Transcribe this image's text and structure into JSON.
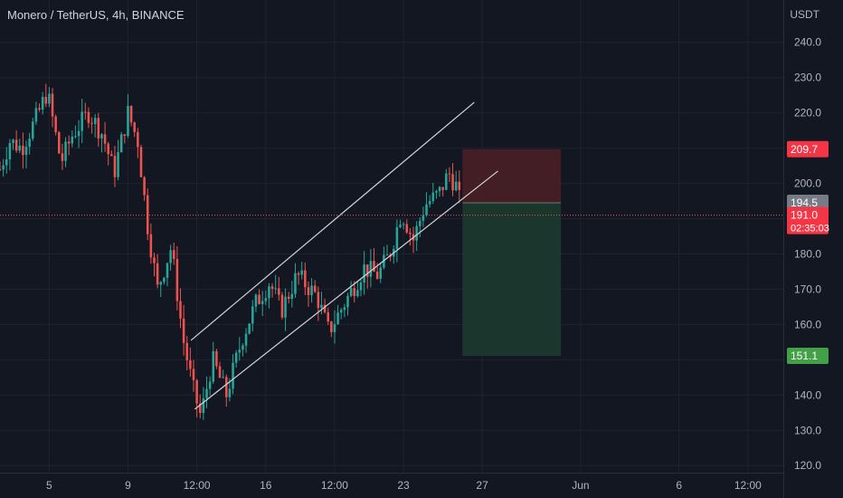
{
  "header": {
    "title": "Monero / TetherUS, 4h, BINANCE",
    "currency": "USDT"
  },
  "colors": {
    "background": "#131722",
    "grid": "#1f2330",
    "up": "#26a69a",
    "down": "#ef5350",
    "axis_text": "#b2b5be",
    "channel": "#d1d4dc",
    "loss_zone": "#4a1f26",
    "profit_zone": "#1d3a2e",
    "current_line": "#ef5350"
  },
  "chart_data": {
    "type": "candlestick",
    "title": "Monero / TetherUS, 4h, BINANCE",
    "ylim": [
      118,
      252
    ],
    "y_ticks": [
      120,
      130,
      140,
      150,
      160,
      170,
      180,
      190,
      200,
      210,
      220,
      230,
      240
    ],
    "y_tick_labels": [
      "120.0",
      "130.0",
      "140.0",
      "150.0",
      "160.0",
      "170.0",
      "180.0",
      "190.0",
      "200.0",
      "210.0",
      "220.0",
      "230.0",
      "240.0"
    ],
    "x_ticks": [
      {
        "label": "5",
        "day": 5
      },
      {
        "label": "9",
        "day": 9
      },
      {
        "label": "12:00",
        "day": 12.5
      },
      {
        "label": "16",
        "day": 16
      },
      {
        "label": "12:00",
        "day": 19.5
      },
      {
        "label": "23",
        "day": 23
      },
      {
        "label": "27",
        "day": 27
      },
      {
        "label": "Jun",
        "day": 32
      },
      {
        "label": "6",
        "day": 37
      },
      {
        "label": "12:00",
        "day": 40.5
      }
    ],
    "xlim_day": [
      2.5,
      42.3
    ],
    "candle_interval_day": 0.1667,
    "anchors": [
      {
        "day": 2.5,
        "price": 204
      },
      {
        "day": 3.0,
        "price": 212
      },
      {
        "day": 3.6,
        "price": 210
      },
      {
        "day": 4.3,
        "price": 218
      },
      {
        "day": 4.9,
        "price": 226
      },
      {
        "day": 5.6,
        "price": 206
      },
      {
        "day": 6.2,
        "price": 214
      },
      {
        "day": 7.0,
        "price": 220
      },
      {
        "day": 7.7,
        "price": 214
      },
      {
        "day": 8.3,
        "price": 203
      },
      {
        "day": 9.0,
        "price": 220
      },
      {
        "day": 9.5,
        "price": 212
      },
      {
        "day": 10.0,
        "price": 188
      },
      {
        "day": 10.5,
        "price": 170
      },
      {
        "day": 11.2,
        "price": 182
      },
      {
        "day": 11.8,
        "price": 156
      },
      {
        "day": 12.3,
        "price": 142
      },
      {
        "day": 12.7,
        "price": 134
      },
      {
        "day": 13.3,
        "price": 150
      },
      {
        "day": 14.0,
        "price": 140
      },
      {
        "day": 14.8,
        "price": 156
      },
      {
        "day": 15.5,
        "price": 166
      },
      {
        "day": 16.2,
        "price": 172
      },
      {
        "day": 16.8,
        "price": 164
      },
      {
        "day": 17.6,
        "price": 174
      },
      {
        "day": 18.6,
        "price": 168
      },
      {
        "day": 19.2,
        "price": 158
      },
      {
        "day": 19.6,
        "price": 162
      },
      {
        "day": 20.4,
        "price": 170
      },
      {
        "day": 21.0,
        "price": 176
      },
      {
        "day": 21.7,
        "price": 174
      },
      {
        "day": 22.3,
        "price": 180
      },
      {
        "day": 22.9,
        "price": 192
      },
      {
        "day": 23.5,
        "price": 184
      },
      {
        "day": 24.1,
        "price": 194
      },
      {
        "day": 24.8,
        "price": 197
      },
      {
        "day": 25.3,
        "price": 203
      },
      {
        "day": 25.7,
        "price": 199
      },
      {
        "day": 26.0,
        "price": 191
      }
    ],
    "channel_lines": [
      {
        "x1": 12.2,
        "y1": 155.5,
        "x2": 26.6,
        "y2": 223
      },
      {
        "x1": 12.4,
        "y1": 136,
        "x2": 27.8,
        "y2": 203.5
      }
    ],
    "position": {
      "entry": 194.5,
      "stop": 209.7,
      "target": 151.1,
      "start_day": 26.0,
      "end_day": 31.0
    },
    "current_price": 191.0,
    "price_labels": [
      {
        "label": "209.7",
        "value": 209.7,
        "color": "#f23645",
        "text_color": "#ffffff"
      },
      {
        "label": "194.5",
        "value": 194.5,
        "color": "#787b86",
        "text_color": "#ffffff"
      },
      {
        "label": "191.0",
        "value": 191.0,
        "color": "#f23645",
        "text_color": "#ffffff",
        "sub": "02:35:03"
      },
      {
        "label": "151.1",
        "value": 151.1,
        "color": "#43a047",
        "text_color": "#ffffff"
      }
    ]
  }
}
